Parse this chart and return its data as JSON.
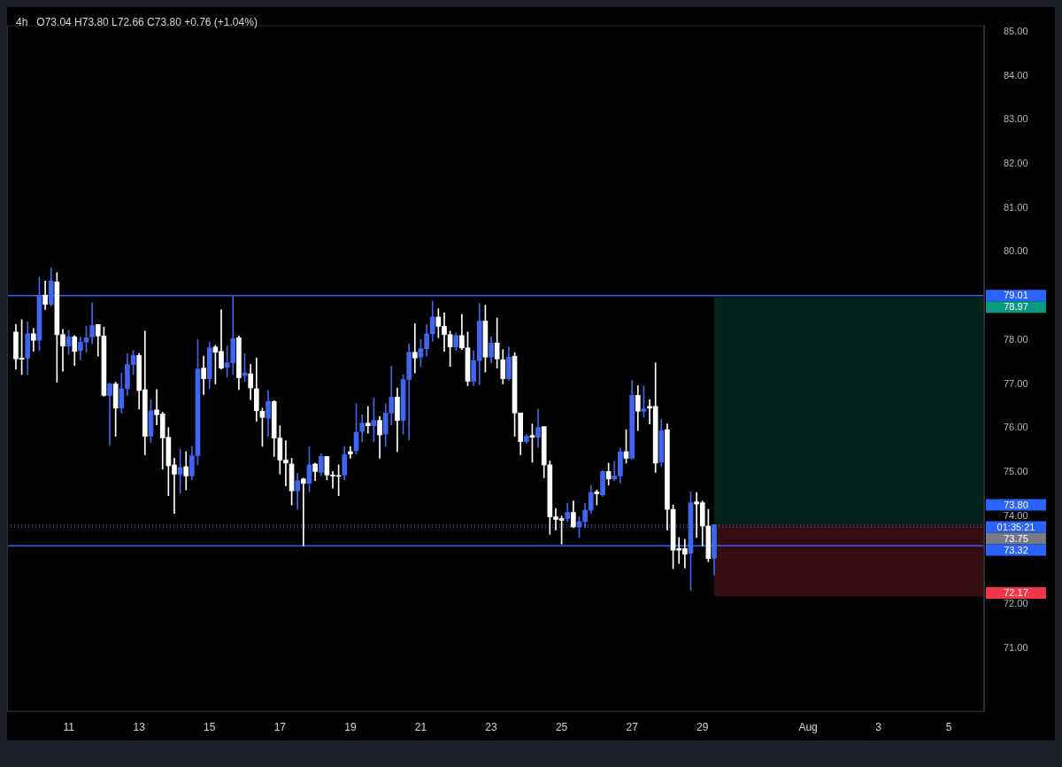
{
  "chart_data": {
    "type": "candlestick",
    "title": "4h",
    "subtitle": "O73.04 H73.80 L72.66 C73.80 +0.76 (+1.04%)",
    "x": [
      "--07-09T12:00",
      "--07-09T16:00",
      "--07-09T20:00",
      "--07-10T00:00",
      "--07-10T04:00",
      "--07-10T08:00",
      "--07-10T12:00",
      "--07-10T16:00",
      "--07-10T20:00",
      "--07-11T00:00",
      "--07-11T04:00",
      "--07-11T08:00",
      "--07-11T12:00",
      "--07-11T16:00",
      "--07-11T20:00",
      "--07-12T00:00",
      "--07-12T04:00",
      "--07-12T08:00",
      "--07-12T12:00",
      "--07-12T16:00",
      "--07-12T20:00",
      "--07-13T00:00",
      "--07-13T04:00",
      "--07-13T08:00",
      "--07-13T12:00",
      "--07-13T16:00",
      "--07-13T20:00",
      "--07-14T00:00",
      "--07-14T04:00",
      "--07-14T08:00",
      "--07-14T12:00",
      "--07-14T16:00",
      "--07-14T20:00",
      "--07-15T00:00",
      "--07-15T04:00",
      "--07-15T08:00",
      "--07-15T12:00",
      "--07-15T16:00",
      "--07-15T20:00",
      "--07-16T00:00",
      "--07-16T04:00",
      "--07-16T08:00",
      "--07-16T12:00",
      "--07-16T16:00",
      "--07-16T20:00",
      "--07-17T00:00",
      "--07-17T04:00",
      "--07-17T08:00",
      "--07-17T12:00",
      "--07-17T16:00",
      "--07-17T20:00",
      "--07-18T00:00",
      "--07-18T04:00",
      "--07-18T08:00",
      "--07-18T12:00",
      "--07-18T16:00",
      "--07-18T20:00",
      "--07-19T00:00",
      "--07-19T04:00",
      "--07-19T08:00",
      "--07-19T12:00",
      "--07-19T16:00",
      "--07-19T20:00",
      "--07-20T00:00",
      "--07-20T04:00",
      "--07-20T08:00",
      "--07-20T12:00",
      "--07-20T16:00",
      "--07-20T20:00",
      "--07-21T00:00",
      "--07-21T04:00",
      "--07-21T08:00",
      "--07-21T12:00",
      "--07-21T16:00",
      "--07-21T20:00",
      "--07-22T00:00",
      "--07-22T04:00",
      "--07-22T08:00",
      "--07-22T12:00",
      "--07-22T16:00",
      "--07-22T20:00",
      "--07-23T00:00",
      "--07-23T04:00",
      "--07-23T08:00",
      "--07-23T12:00",
      "--07-23T16:00",
      "--07-23T20:00",
      "--07-24T00:00",
      "--07-24T04:00",
      "--07-24T08:00",
      "--07-24T12:00",
      "--07-24T16:00",
      "--07-24T20:00",
      "--07-25T00:00",
      "--07-25T04:00",
      "--07-25T08:00",
      "--07-25T12:00",
      "--07-25T16:00",
      "--07-25T20:00",
      "--07-26T00:00",
      "--07-26T04:00",
      "--07-26T08:00",
      "--07-26T12:00",
      "--07-26T16:00",
      "--07-26T20:00",
      "--07-27T00:00",
      "--07-27T04:00",
      "--07-27T08:00",
      "--07-27T12:00",
      "--07-27T16:00",
      "--07-27T20:00",
      "--07-28T00:00",
      "--07-28T04:00",
      "--07-28T08:00",
      "--07-28T12:00",
      "--07-28T16:00",
      "--07-28T20:00",
      "--07-29T00:00",
      "--07-29T04:00",
      "--07-29T08:00"
    ],
    "ohlc": [
      [
        78.18,
        78.35,
        77.34,
        77.57
      ],
      [
        77.59,
        78.46,
        77.21,
        77.56
      ],
      [
        77.59,
        78.41,
        77.21,
        78.14
      ],
      [
        78.14,
        78.26,
        77.74,
        77.99
      ],
      [
        77.99,
        79.43,
        77.76,
        79.02
      ],
      [
        79.02,
        79.34,
        78.69,
        78.81
      ],
      [
        78.81,
        79.64,
        78.77,
        79.34
      ],
      [
        79.32,
        79.53,
        77.04,
        78.12
      ],
      [
        78.12,
        78.24,
        77.29,
        77.86
      ],
      [
        77.86,
        78.22,
        77.67,
        78.07
      ],
      [
        78.07,
        78.1,
        77.42,
        77.74
      ],
      [
        77.76,
        78.07,
        77.55,
        77.95
      ],
      [
        77.95,
        78.31,
        77.72,
        78.05
      ],
      [
        78.07,
        78.84,
        77.91,
        78.33
      ],
      [
        78.35,
        78.35,
        77.63,
        78.09
      ],
      [
        78.09,
        78.29,
        76.72,
        76.74
      ],
      [
        76.74,
        77.02,
        75.6,
        77.0
      ],
      [
        77.0,
        77.04,
        75.81,
        76.45
      ],
      [
        76.45,
        77.25,
        76.34,
        76.89
      ],
      [
        76.89,
        77.69,
        76.74,
        77.44
      ],
      [
        77.44,
        77.76,
        77.21,
        77.65
      ],
      [
        77.65,
        77.69,
        76.43,
        76.85
      ],
      [
        76.87,
        78.2,
        75.39,
        75.81
      ],
      [
        75.81,
        76.64,
        75.67,
        76.39
      ],
      [
        76.41,
        76.87,
        76.07,
        76.3
      ],
      [
        76.32,
        76.36,
        75.06,
        75.77
      ],
      [
        75.79,
        76.01,
        74.46,
        75.14
      ],
      [
        75.16,
        75.31,
        74.06,
        74.95
      ],
      [
        74.95,
        75.52,
        74.51,
        75.1
      ],
      [
        75.12,
        75.46,
        74.59,
        74.91
      ],
      [
        74.91,
        75.58,
        74.82,
        75.37
      ],
      [
        75.37,
        78.01,
        75.16,
        77.34
      ],
      [
        77.36,
        77.63,
        76.76,
        77.12
      ],
      [
        77.12,
        77.95,
        76.89,
        77.82
      ],
      [
        77.84,
        77.88,
        77.0,
        77.72
      ],
      [
        77.74,
        78.69,
        77.34,
        77.36
      ],
      [
        77.38,
        77.86,
        77.15,
        77.48
      ],
      [
        77.48,
        78.98,
        77.21,
        78.03
      ],
      [
        78.05,
        78.09,
        76.87,
        77.14
      ],
      [
        77.19,
        77.69,
        77.06,
        77.25
      ],
      [
        77.23,
        77.44,
        76.64,
        76.91
      ],
      [
        76.89,
        77.59,
        76.15,
        76.39
      ],
      [
        76.38,
        76.45,
        75.58,
        76.24
      ],
      [
        76.22,
        76.85,
        75.81,
        76.6
      ],
      [
        76.6,
        76.62,
        75.35,
        75.77
      ],
      [
        75.77,
        76.05,
        74.95,
        75.27
      ],
      [
        75.27,
        75.71,
        74.68,
        75.2
      ],
      [
        75.18,
        75.31,
        74.25,
        74.57
      ],
      [
        74.57,
        74.97,
        74.15,
        74.8
      ],
      [
        74.84,
        74.86,
        73.32,
        74.74
      ],
      [
        74.74,
        75.58,
        74.55,
        75.16
      ],
      [
        75.18,
        75.2,
        74.8,
        75.01
      ],
      [
        74.99,
        75.41,
        74.91,
        75.35
      ],
      [
        75.35,
        75.35,
        74.82,
        74.93
      ],
      [
        74.93,
        75.01,
        74.63,
        74.91
      ],
      [
        74.92,
        75.16,
        74.46,
        74.9
      ],
      [
        74.93,
        75.58,
        74.82,
        75.39
      ],
      [
        75.46,
        75.58,
        75.31,
        75.41
      ],
      [
        75.48,
        76.55,
        75.41,
        75.9
      ],
      [
        75.92,
        76.3,
        75.69,
        76.11
      ],
      [
        76.11,
        76.49,
        75.88,
        76.05
      ],
      [
        76.05,
        76.68,
        75.69,
        76.17
      ],
      [
        76.17,
        76.26,
        75.31,
        75.84
      ],
      [
        75.86,
        76.55,
        75.58,
        76.34
      ],
      [
        76.34,
        77.4,
        76.07,
        76.7
      ],
      [
        76.7,
        76.91,
        75.46,
        76.17
      ],
      [
        76.17,
        77.21,
        75.86,
        77.1
      ],
      [
        77.1,
        77.91,
        75.73,
        77.72
      ],
      [
        77.72,
        78.37,
        77.25,
        77.59
      ],
      [
        77.61,
        78.01,
        77.4,
        77.8
      ],
      [
        77.8,
        78.35,
        77.63,
        78.14
      ],
      [
        78.14,
        78.88,
        77.97,
        78.52
      ],
      [
        78.52,
        78.71,
        78.05,
        78.31
      ],
      [
        78.31,
        78.62,
        77.74,
        78.12
      ],
      [
        78.12,
        78.2,
        77.4,
        77.84
      ],
      [
        77.84,
        78.16,
        77.76,
        78.1
      ],
      [
        78.1,
        78.58,
        77.78,
        77.82
      ],
      [
        77.82,
        78.18,
        76.96,
        77.06
      ],
      [
        77.06,
        77.76,
        76.96,
        77.53
      ],
      [
        77.53,
        78.83,
        76.98,
        78.43
      ],
      [
        78.43,
        78.79,
        77.27,
        77.61
      ],
      [
        77.61,
        78.07,
        77.48,
        77.93
      ],
      [
        77.93,
        78.5,
        77.36,
        77.57
      ],
      [
        77.55,
        77.78,
        77.0,
        77.12
      ],
      [
        77.12,
        77.84,
        77.08,
        77.61
      ],
      [
        77.63,
        77.71,
        75.81,
        76.34
      ],
      [
        76.34,
        76.34,
        75.39,
        75.69
      ],
      [
        75.69,
        75.85,
        75.65,
        75.81
      ],
      [
        75.83,
        76.09,
        75.22,
        75.79
      ],
      [
        75.79,
        76.43,
        75.56,
        76.01
      ],
      [
        76.03,
        76.03,
        74.87,
        75.16
      ],
      [
        75.16,
        75.25,
        73.58,
        73.98
      ],
      [
        73.98,
        74.17,
        73.68,
        73.92
      ],
      [
        73.94,
        74.0,
        73.36,
        73.9
      ],
      [
        73.94,
        74.29,
        73.87,
        74.08
      ],
      [
        74.08,
        74.34,
        73.73,
        73.75
      ],
      [
        73.75,
        73.98,
        73.51,
        73.87
      ],
      [
        73.87,
        74.29,
        73.73,
        74.13
      ],
      [
        74.13,
        74.7,
        74.06,
        74.53
      ],
      [
        74.55,
        74.59,
        74.25,
        74.5
      ],
      [
        74.48,
        75.03,
        74.44,
        75.01
      ],
      [
        75.01,
        75.2,
        74.7,
        74.84
      ],
      [
        74.84,
        75.25,
        74.8,
        74.91
      ],
      [
        74.91,
        75.54,
        74.74,
        75.46
      ],
      [
        75.46,
        75.96,
        75.2,
        75.31
      ],
      [
        75.31,
        77.08,
        75.29,
        76.74
      ],
      [
        76.74,
        76.96,
        75.94,
        76.38
      ],
      [
        76.38,
        76.96,
        76.24,
        76.43
      ],
      [
        76.49,
        76.64,
        76.09,
        76.45
      ],
      [
        76.49,
        77.48,
        74.99,
        75.2
      ],
      [
        75.22,
        76.2,
        75.12,
        75.94
      ],
      [
        75.96,
        76.09,
        73.68,
        74.15
      ],
      [
        74.15,
        74.25,
        72.8,
        73.22
      ],
      [
        73.26,
        73.51,
        72.92,
        73.22
      ],
      [
        73.26,
        73.47,
        72.82,
        73.13
      ],
      [
        73.15,
        74.55,
        72.31,
        74.3
      ],
      [
        74.32,
        74.53,
        73.51,
        74.27
      ],
      [
        74.3,
        74.34,
        73.32,
        73.77
      ],
      [
        73.77,
        74.15,
        72.96,
        73.03
      ],
      [
        73.04,
        73.8,
        72.66,
        73.8
      ]
    ],
    "colors": [
      "#ffffff",
      "#ffffff",
      "#3f66f0",
      "#ffffff",
      "#3f66f0",
      "#ffffff",
      "#3f66f0",
      "#ffffff",
      "#ffffff",
      "#3f66f0",
      "#ffffff",
      "#3f66f0",
      "#3f66f0",
      "#3f66f0",
      "#ffffff",
      "#ffffff",
      "#3f66f0",
      "#ffffff",
      "#3f66f0",
      "#3f66f0",
      "#3f66f0",
      "#ffffff",
      "#ffffff",
      "#3f66f0",
      "#ffffff",
      "#ffffff",
      "#ffffff",
      "#ffffff",
      "#3f66f0",
      "#ffffff",
      "#3f66f0",
      "#3f66f0",
      "#ffffff",
      "#3f66f0",
      "#ffffff",
      "#ffffff",
      "#3f66f0",
      "#3f66f0",
      "#ffffff",
      "#3f66f0",
      "#ffffff",
      "#ffffff",
      "#ffffff",
      "#3f66f0",
      "#ffffff",
      "#ffffff",
      "#ffffff",
      "#ffffff",
      "#3f66f0",
      "#ffffff",
      "#3f66f0",
      "#ffffff",
      "#3f66f0",
      "#ffffff",
      "#ffffff",
      "#ffffff",
      "#3f66f0",
      "#ffffff",
      "#3f66f0",
      "#3f66f0",
      "#ffffff",
      "#3f66f0",
      "#ffffff",
      "#3f66f0",
      "#3f66f0",
      "#ffffff",
      "#3f66f0",
      "#3f66f0",
      "#ffffff",
      "#3f66f0",
      "#3f66f0",
      "#3f66f0",
      "#ffffff",
      "#ffffff",
      "#ffffff",
      "#3f66f0",
      "#ffffff",
      "#ffffff",
      "#3f66f0",
      "#3f66f0",
      "#ffffff",
      "#3f66f0",
      "#ffffff",
      "#ffffff",
      "#3f66f0",
      "#ffffff",
      "#ffffff",
      "#3f66f0",
      "#ffffff",
      "#3f66f0",
      "#ffffff",
      "#ffffff",
      "#ffffff",
      "#ffffff",
      "#3f66f0",
      "#ffffff",
      "#3f66f0",
      "#3f66f0",
      "#3f66f0",
      "#ffffff",
      "#3f66f0",
      "#ffffff",
      "#3f66f0",
      "#3f66f0",
      "#ffffff",
      "#3f66f0",
      "#ffffff",
      "#3f66f0",
      "#ffffff",
      "#ffffff",
      "#3f66f0",
      "#ffffff",
      "#ffffff",
      "#ffffff",
      "#ffffff",
      "#3f66f0",
      "#ffffff",
      "#ffffff",
      "#ffffff",
      "#3f66f0"
    ],
    "xlim": [
      "--07-09T06:00",
      "--08-06T00:00"
    ],
    "xticks": [
      {
        "value": "--07-11",
        "label": "11"
      },
      {
        "value": "--07-13",
        "label": "13"
      },
      {
        "value": "--07-15",
        "label": "15"
      },
      {
        "value": "--07-17",
        "label": "17"
      },
      {
        "value": "--07-19",
        "label": "19"
      },
      {
        "value": "--07-21",
        "label": "21"
      },
      {
        "value": "--07-23",
        "label": "23"
      },
      {
        "value": "--07-25",
        "label": "25"
      },
      {
        "value": "--07-27",
        "label": "27"
      },
      {
        "value": "--07-29",
        "label": "29"
      },
      {
        "value": "--08-01",
        "label": "Aug"
      },
      {
        "value": "--08-03",
        "label": "3"
      },
      {
        "value": "--08-05",
        "label": "5"
      }
    ],
    "ylim": [
      69.55,
      85.15
    ],
    "yticks": [
      {
        "value": 71,
        "label": "71.00"
      },
      {
        "value": 72,
        "label": "72.00"
      },
      {
        "value": 74,
        "label": "74.00"
      },
      {
        "value": 75,
        "label": "75.00"
      },
      {
        "value": 76,
        "label": "76.00"
      },
      {
        "value": 77,
        "label": "77.00"
      },
      {
        "value": 78,
        "label": "78.00"
      },
      {
        "value": 80,
        "label": "80.00"
      },
      {
        "value": 81,
        "label": "81.00"
      },
      {
        "value": 82,
        "label": "82.00"
      },
      {
        "value": 83,
        "label": "83.00"
      },
      {
        "value": 84,
        "label": "84.00"
      },
      {
        "value": 85,
        "label": "85.00"
      }
    ],
    "ref_lines": [
      {
        "axis": "y",
        "value": 79.01,
        "label": "79.01",
        "color": "#2962ff"
      },
      {
        "axis": "y",
        "value": 73.8,
        "label": "73.80",
        "color": "#2962ff",
        "line_style": "dotted"
      },
      {
        "axis": "y",
        "value": 73.75,
        "label": "73.75",
        "color": "#787b86",
        "line_style": "dotted"
      },
      {
        "axis": "y",
        "value": 73.32,
        "label": "73.32",
        "color": "#2962ff"
      }
    ],
    "bands": [
      {
        "axis": "y",
        "from": 73.8,
        "to": 78.97,
        "label": "78.97",
        "color": "#089981"
      },
      {
        "axis": "y",
        "from": 72.17,
        "to": 73.8,
        "label": "72.17",
        "color": "#f23645"
      }
    ],
    "annotations": [
      "01:35:21"
    ],
    "grid": false,
    "legend": false
  }
}
